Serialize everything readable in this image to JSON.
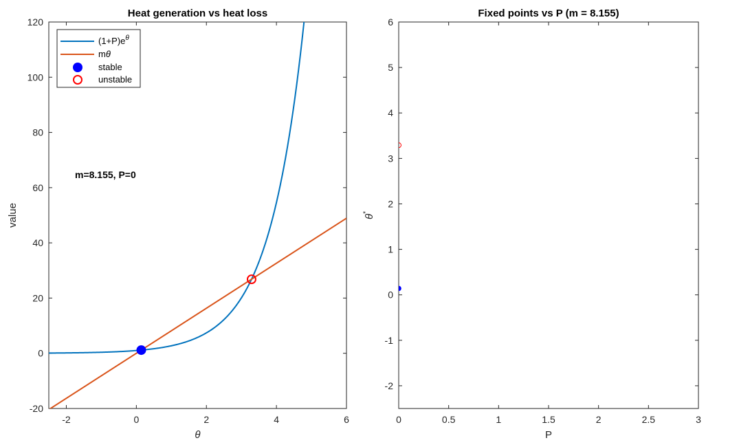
{
  "colors": {
    "curve": "#0072BD",
    "line": "#D95319",
    "stable": "#0000FF",
    "unstable": "#FF0000",
    "axes": "#262626"
  },
  "chart_data": [
    {
      "type": "line",
      "title": "Heat generation vs heat loss",
      "xlabel": "θ",
      "ylabel": "value",
      "xlim": [
        -2.5,
        6
      ],
      "ylim": [
        -20,
        120
      ],
      "xticks": [
        "-2",
        "0",
        "2",
        "4",
        "6"
      ],
      "yticks": [
        "-20",
        "0",
        "20",
        "40",
        "60",
        "80",
        "100",
        "120"
      ],
      "grid": false,
      "legend_position": "top-left",
      "annotation": "m=8.155,  P=0",
      "m": 8.155,
      "P": 0,
      "series": [
        {
          "name": "(1+P)e^θ",
          "name_base": "(1+P)e",
          "name_sup": "θ",
          "kind": "curve",
          "formula": "(1+P)*exp(theta)"
        },
        {
          "name": "mθ",
          "kind": "line",
          "formula": "m*theta"
        },
        {
          "name": "stable",
          "kind": "marker-filled",
          "points": [
            {
              "x": 0.14,
              "y": 1.15
            }
          ]
        },
        {
          "name": "unstable",
          "kind": "marker-open",
          "points": [
            {
              "x": 3.29,
              "y": 26.8
            }
          ]
        }
      ]
    },
    {
      "type": "scatter",
      "title": "Fixed points vs P (m = 8.155)",
      "xlabel": "P",
      "ylabel": "θ*",
      "xlim": [
        0,
        3
      ],
      "ylim": [
        -2.5,
        6
      ],
      "xticks": [
        "0",
        "0.5",
        "1",
        "1.5",
        "2",
        "2.5",
        "3"
      ],
      "yticks": [
        "-2",
        "-1",
        "0",
        "1",
        "2",
        "3",
        "4",
        "5",
        "6"
      ],
      "grid": false,
      "series": [
        {
          "kind": "stable",
          "points": [
            {
              "x": 0,
              "y": 0.14
            }
          ]
        },
        {
          "kind": "unstable",
          "points": [
            {
              "x": 0,
              "y": 3.29
            }
          ]
        }
      ]
    }
  ]
}
